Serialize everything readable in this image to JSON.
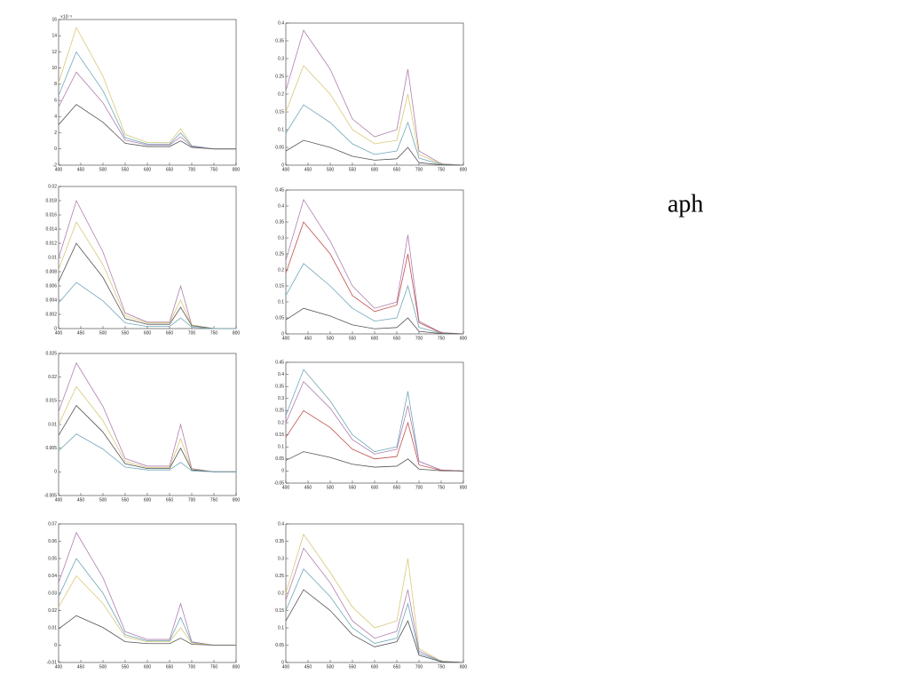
{
  "annotation": "aph",
  "chart_data": [
    {
      "type": "line",
      "y_multiplier": "×10⁻³",
      "x": [
        400,
        440,
        500,
        550,
        600,
        650,
        675,
        700,
        750,
        800
      ],
      "xlim": [
        400,
        800
      ],
      "xticks": [
        400,
        450,
        500,
        550,
        600,
        650,
        700,
        750,
        800
      ],
      "ylim": [
        -2,
        16
      ],
      "yticks": [
        -2,
        0,
        2,
        4,
        6,
        8,
        10,
        12,
        14,
        16
      ],
      "series": [
        {
          "color": "#d8c878",
          "values": [
            8.2,
            15,
            9,
            1.8,
            0.8,
            0.8,
            2.5,
            0.4,
            0,
            0
          ]
        },
        {
          "color": "#6fa8b8",
          "values": [
            6.6,
            12,
            7.2,
            1.4,
            0.6,
            0.6,
            2,
            0.4,
            0,
            0
          ]
        },
        {
          "color": "#b07fb0",
          "values": [
            5.2,
            9.5,
            5.7,
            1.1,
            0.5,
            0.5,
            1.5,
            0.3,
            0,
            0
          ]
        },
        {
          "color": "#555555",
          "values": [
            3,
            5.5,
            3.3,
            0.7,
            0.3,
            0.3,
            1,
            0.2,
            0,
            0
          ]
        }
      ]
    },
    {
      "type": "line",
      "x": [
        400,
        440,
        500,
        550,
        600,
        650,
        675,
        700,
        750,
        800
      ],
      "xlim": [
        400,
        800
      ],
      "xticks": [
        400,
        450,
        500,
        550,
        600,
        650,
        700,
        750,
        800
      ],
      "ylim": [
        0,
        0.4
      ],
      "yticks": [
        0,
        0.05,
        0.1,
        0.15,
        0.2,
        0.25,
        0.3,
        0.35,
        0.4
      ],
      "series": [
        {
          "color": "#b07fb0",
          "values": [
            0.21,
            0.38,
            0.27,
            0.13,
            0.08,
            0.1,
            0.27,
            0.04,
            0.004,
            0
          ]
        },
        {
          "color": "#d8c878",
          "values": [
            0.15,
            0.28,
            0.2,
            0.1,
            0.06,
            0.07,
            0.2,
            0.03,
            0.003,
            0
          ]
        },
        {
          "color": "#6fa8b8",
          "values": [
            0.09,
            0.17,
            0.12,
            0.06,
            0.03,
            0.04,
            0.12,
            0.02,
            0.002,
            0
          ]
        },
        {
          "color": "#555555",
          "values": [
            0.04,
            0.07,
            0.05,
            0.025,
            0.014,
            0.018,
            0.05,
            0.007,
            0.001,
            0
          ]
        }
      ]
    },
    {
      "type": "line",
      "x": [
        400,
        440,
        500,
        550,
        600,
        650,
        675,
        700,
        750,
        800
      ],
      "xlim": [
        400,
        800
      ],
      "xticks": [
        400,
        450,
        500,
        550,
        600,
        650,
        700,
        750,
        800
      ],
      "ylim": [
        0,
        0.02
      ],
      "yticks": [
        0,
        0.002,
        0.004,
        0.006,
        0.008,
        0.01,
        0.012,
        0.014,
        0.016,
        0.018,
        0.02
      ],
      "series": [
        {
          "color": "#b07fb0",
          "values": [
            0.0099,
            0.018,
            0.0108,
            0.0022,
            0.0009,
            0.0009,
            0.006,
            0.0005,
            0,
            0
          ]
        },
        {
          "color": "#d8c878",
          "values": [
            0.0083,
            0.015,
            0.009,
            0.0018,
            0.0008,
            0.0008,
            0.004,
            0.0005,
            0,
            0
          ]
        },
        {
          "color": "#555555",
          "values": [
            0.0066,
            0.012,
            0.0072,
            0.0014,
            0.0006,
            0.0006,
            0.003,
            0.0004,
            0,
            0
          ]
        },
        {
          "color": "#6fa8b8",
          "values": [
            0.0036,
            0.0065,
            0.0039,
            0.0008,
            0.0003,
            0.0003,
            0.0015,
            0.0002,
            0,
            0
          ]
        }
      ]
    },
    {
      "type": "line",
      "x": [
        400,
        440,
        500,
        550,
        600,
        650,
        675,
        700,
        750,
        800
      ],
      "xlim": [
        400,
        800
      ],
      "xticks": [
        400,
        450,
        500,
        550,
        600,
        650,
        700,
        750,
        800
      ],
      "ylim": [
        0,
        0.45
      ],
      "yticks": [
        0,
        0.05,
        0.1,
        0.15,
        0.2,
        0.25,
        0.3,
        0.35,
        0.4,
        0.45
      ],
      "series": [
        {
          "color": "#b07fb0",
          "values": [
            0.23,
            0.42,
            0.29,
            0.15,
            0.08,
            0.1,
            0.31,
            0.04,
            0.004,
            0
          ]
        },
        {
          "color": "#c0504d",
          "values": [
            0.19,
            0.35,
            0.25,
            0.12,
            0.07,
            0.09,
            0.25,
            0.035,
            0.003,
            0
          ]
        },
        {
          "color": "#6fa8b8",
          "values": [
            0.12,
            0.22,
            0.15,
            0.08,
            0.04,
            0.05,
            0.15,
            0.02,
            0.002,
            0
          ]
        },
        {
          "color": "#555555",
          "values": [
            0.044,
            0.08,
            0.056,
            0.028,
            0.016,
            0.02,
            0.05,
            0.008,
            0.001,
            0
          ]
        }
      ]
    },
    {
      "type": "line",
      "x": [
        400,
        440,
        500,
        550,
        600,
        650,
        675,
        700,
        750,
        800
      ],
      "xlim": [
        400,
        800
      ],
      "xticks": [
        400,
        450,
        500,
        550,
        600,
        650,
        700,
        750,
        800
      ],
      "ylim": [
        -0.005,
        0.025
      ],
      "yticks": [
        -0.005,
        0,
        0.005,
        0.01,
        0.015,
        0.02,
        0.025
      ],
      "series": [
        {
          "color": "#b07fb0",
          "values": [
            0.0127,
            0.023,
            0.0138,
            0.0028,
            0.0012,
            0.0012,
            0.01,
            0.0007,
            0,
            0
          ]
        },
        {
          "color": "#d8c878",
          "values": [
            0.0099,
            0.018,
            0.0108,
            0.0022,
            0.0009,
            0.0009,
            0.007,
            0.0005,
            0,
            0
          ]
        },
        {
          "color": "#555555",
          "values": [
            0.0077,
            0.014,
            0.0084,
            0.0017,
            0.0007,
            0.0007,
            0.005,
            0.0004,
            0,
            0
          ]
        },
        {
          "color": "#6fa8b8",
          "values": [
            0.0044,
            0.008,
            0.0048,
            0.001,
            0.0004,
            0.0004,
            0.002,
            0.0002,
            0,
            0
          ]
        }
      ]
    },
    {
      "type": "line",
      "x": [
        400,
        440,
        500,
        550,
        600,
        650,
        675,
        700,
        750,
        800
      ],
      "xlim": [
        400,
        800
      ],
      "xticks": [
        400,
        450,
        500,
        550,
        600,
        650,
        700,
        750,
        800
      ],
      "ylim": [
        -0.05,
        0.45
      ],
      "yticks": [
        -0.05,
        0,
        0.05,
        0.1,
        0.15,
        0.2,
        0.25,
        0.3,
        0.35,
        0.4,
        0.45
      ],
      "series": [
        {
          "color": "#6fa8b8",
          "values": [
            0.23,
            0.42,
            0.29,
            0.15,
            0.08,
            0.1,
            0.33,
            0.04,
            0.004,
            0
          ]
        },
        {
          "color": "#b07fb0",
          "values": [
            0.2,
            0.37,
            0.26,
            0.13,
            0.07,
            0.09,
            0.27,
            0.04,
            0.004,
            0
          ]
        },
        {
          "color": "#c0504d",
          "values": [
            0.14,
            0.25,
            0.18,
            0.09,
            0.05,
            0.06,
            0.2,
            0.025,
            0.003,
            0
          ]
        },
        {
          "color": "#555555",
          "values": [
            0.044,
            0.08,
            0.056,
            0.028,
            0.016,
            0.02,
            0.05,
            0.008,
            0.001,
            0
          ]
        }
      ]
    },
    {
      "type": "line",
      "x": [
        400,
        440,
        500,
        550,
        600,
        650,
        675,
        700,
        750,
        800
      ],
      "xlim": [
        400,
        800
      ],
      "xticks": [
        400,
        450,
        500,
        550,
        600,
        650,
        700,
        750,
        800
      ],
      "ylim": [
        -0.01,
        0.07
      ],
      "yticks": [
        -0.01,
        0,
        0.01,
        0.02,
        0.03,
        0.04,
        0.05,
        0.06,
        0.07
      ],
      "series": [
        {
          "color": "#b07fb0",
          "values": [
            0.036,
            0.065,
            0.039,
            0.0078,
            0.0033,
            0.0033,
            0.024,
            0.002,
            0,
            0
          ]
        },
        {
          "color": "#6fa8b8",
          "values": [
            0.028,
            0.05,
            0.03,
            0.006,
            0.0025,
            0.0025,
            0.016,
            0.0015,
            0,
            0
          ]
        },
        {
          "color": "#d8c878",
          "values": [
            0.022,
            0.04,
            0.024,
            0.0048,
            0.002,
            0.002,
            0.01,
            0.0012,
            0,
            0
          ]
        },
        {
          "color": "#555555",
          "values": [
            0.0094,
            0.017,
            0.0102,
            0.002,
            0.0009,
            0.0009,
            0.004,
            0.0005,
            0,
            0
          ]
        }
      ]
    },
    {
      "type": "line",
      "x": [
        400,
        440,
        500,
        550,
        600,
        650,
        675,
        700,
        750,
        800
      ],
      "xlim": [
        400,
        800
      ],
      "xticks": [
        400,
        450,
        500,
        550,
        600,
        650,
        700,
        750,
        800
      ],
      "ylim": [
        0,
        0.4
      ],
      "yticks": [
        0,
        0.05,
        0.1,
        0.15,
        0.2,
        0.25,
        0.3,
        0.35,
        0.4
      ],
      "series": [
        {
          "color": "#d8c878",
          "values": [
            0.2,
            0.37,
            0.26,
            0.16,
            0.1,
            0.12,
            0.3,
            0.04,
            0.004,
            0
          ]
        },
        {
          "color": "#b07fb0",
          "values": [
            0.18,
            0.33,
            0.23,
            0.12,
            0.07,
            0.09,
            0.21,
            0.033,
            0.003,
            0
          ]
        },
        {
          "color": "#6fa8b8",
          "values": [
            0.15,
            0.27,
            0.19,
            0.1,
            0.055,
            0.07,
            0.17,
            0.027,
            0.003,
            0
          ]
        },
        {
          "color": "#555555",
          "values": [
            0.12,
            0.21,
            0.15,
            0.08,
            0.045,
            0.06,
            0.12,
            0.021,
            0.002,
            0
          ]
        }
      ]
    }
  ]
}
